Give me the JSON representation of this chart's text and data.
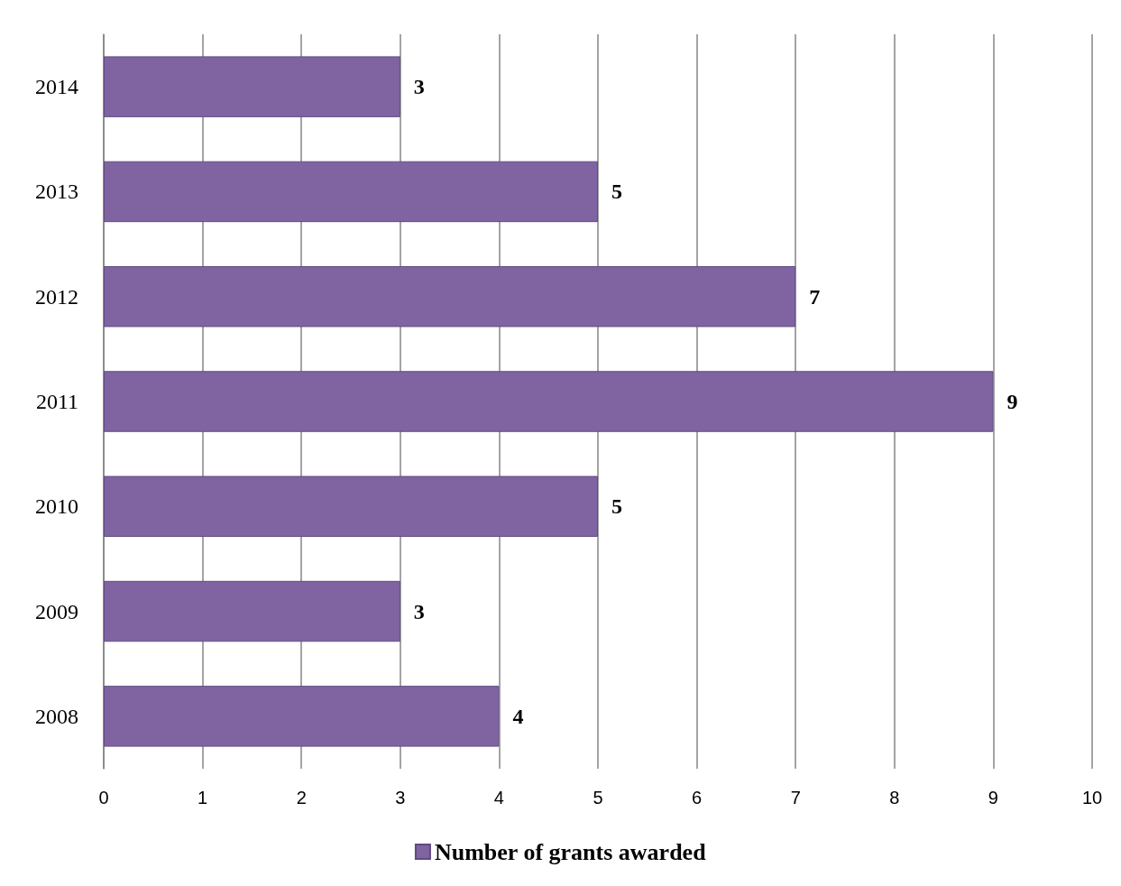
{
  "chart_data": {
    "type": "bar",
    "orientation": "horizontal",
    "categories": [
      "2014",
      "2013",
      "2012",
      "2011",
      "2010",
      "2009",
      "2008"
    ],
    "series": [
      {
        "name": "Number of grants awarded",
        "color": "#8064a2",
        "values": [
          3,
          5,
          7,
          9,
          5,
          3,
          4
        ]
      }
    ],
    "xlim": [
      0,
      10
    ],
    "xticks": [
      0,
      1,
      2,
      3,
      4,
      5,
      6,
      7,
      8,
      9,
      10
    ],
    "grid": "x",
    "legend": "bottom",
    "data_labels": true
  }
}
